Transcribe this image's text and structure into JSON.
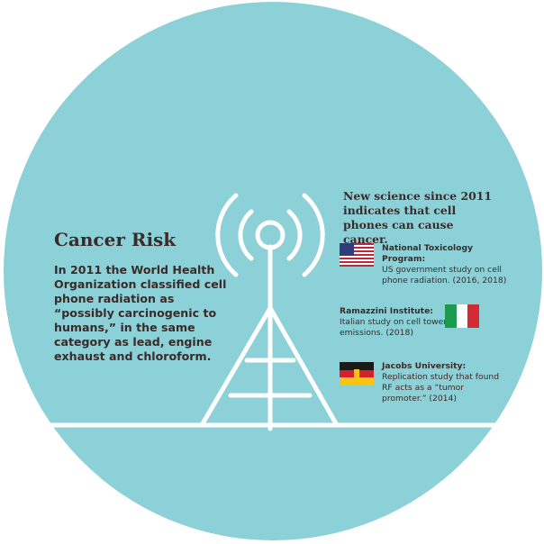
{
  "left": {
    "title": "Cancer Risk",
    "body": "In 2011 the World Health Organization classified cell phone radiation as “possibly carcinogenic to humans,” in the same category as lead, engine exhaust and chloroform."
  },
  "right": {
    "heading": "New science since 2011 indicates that cell phones can cause cancer.",
    "studies": [
      {
        "title": "National Toxicology Program:",
        "desc": "US government study on cell phone radiation. (2016, 2018)",
        "flag_icon": "us-flag-icon"
      },
      {
        "title": "Ramazzini Institute:",
        "desc": "Italian study on cell tower emissions. (2018)",
        "flag_icon": "italy-flag-icon"
      },
      {
        "title": "Jacobs University:",
        "desc": "Replication study that found RF acts as a “tumor promoter.” (2014)",
        "flag_icon": "germany-flag-icon"
      }
    ]
  },
  "colors": {
    "background": "#8dd1d8",
    "text": "#3a2b28",
    "tower": "#ffffff"
  }
}
